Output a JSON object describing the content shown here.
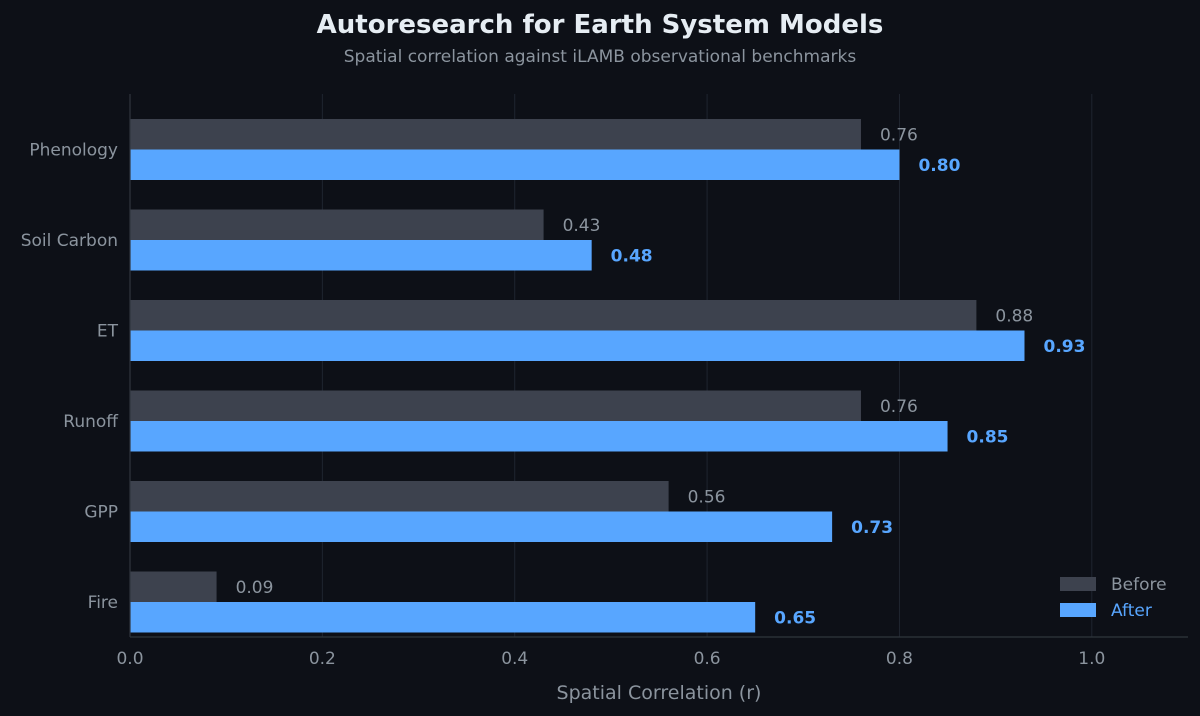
{
  "chart_data": {
    "type": "bar",
    "orientation": "horizontal",
    "title": "Autoresearch for Earth System Models",
    "subtitle": "Spatial correlation against iLAMB observational benchmarks",
    "xlabel": "Spatial Correlation (r)",
    "ylabel": "",
    "xlim": [
      0,
      1.1
    ],
    "xticks": [
      "0.0",
      "0.2",
      "0.4",
      "0.6",
      "0.8",
      "1.0"
    ],
    "grid": true,
    "legend_position": "bottom-right",
    "categories": [
      "Phenology",
      "Soil Carbon",
      "ET",
      "Runoff",
      "GPP",
      "Fire"
    ],
    "series": [
      {
        "name": "Before",
        "values": [
          0.76,
          0.43,
          0.88,
          0.76,
          0.56,
          0.09
        ],
        "labels": [
          "0.76",
          "0.43",
          "0.88",
          "0.76",
          "0.56",
          "0.09"
        ],
        "color": "#3d424e"
      },
      {
        "name": "After",
        "values": [
          0.8,
          0.48,
          0.93,
          0.85,
          0.73,
          0.65
        ],
        "labels": [
          "0.80",
          "0.48",
          "0.93",
          "0.85",
          "0.73",
          "0.65"
        ],
        "color": "#58a6ff"
      }
    ]
  },
  "colors": {
    "background": "#0d1017",
    "title": "#e6edf3",
    "muted_text": "#8b949e",
    "before_label": "#8b949e",
    "after_label": "#58a6ff",
    "grid": "#1f2530",
    "axis": "#30363d"
  }
}
